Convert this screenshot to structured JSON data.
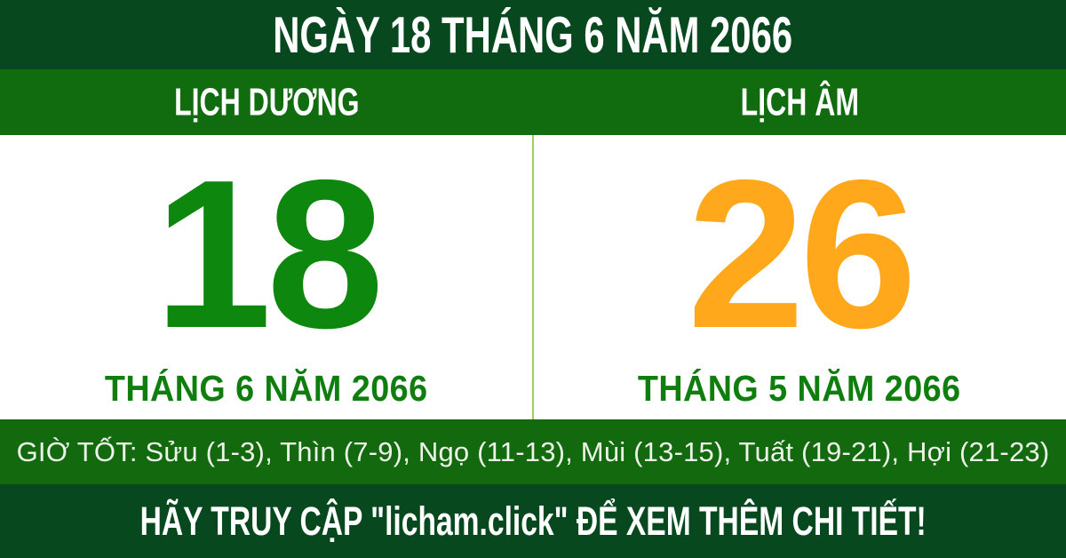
{
  "header": {
    "title": "NGÀY 18 THÁNG 6 NĂM 2066"
  },
  "columns": {
    "solar": {
      "label": "LỊCH DƯƠNG",
      "day": "18",
      "month_line": "THÁNG 6 NĂM 2066"
    },
    "lunar": {
      "label": "LỊCH ÂM",
      "day": "26",
      "month_line": "THÁNG 5 NĂM 2066"
    }
  },
  "good_hours": {
    "text": "GIỜ TỐT: Sửu (1-3), Thìn (7-9), Ngọ (11-13), Mùi (13-15), Tuất (19-21), Hợi (21-23)"
  },
  "footer": {
    "cta": "HÃY TRUY CẬP \"licham.click\" ĐỂ XEM THÊM CHI TIẾT!"
  },
  "colors": {
    "darkGreen": "#07481e",
    "medGreen": "#116b0f",
    "medGreen2": "#12690e",
    "solarGreen": "#0d870d",
    "monthGreen": "#0f7e0f",
    "lunarOrange": "#ffa81c",
    "dividerGreen": "#9ccf63",
    "white": "#ffffff",
    "offWhite": "#eef4ea"
  }
}
